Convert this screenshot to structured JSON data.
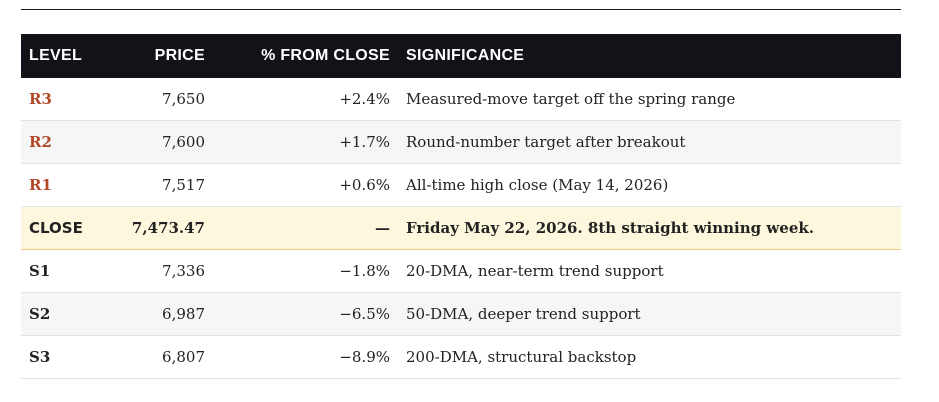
{
  "table": {
    "headers": {
      "level": "LEVEL",
      "price": "PRICE",
      "pct": "% FROM CLOSE",
      "significance": "SIGNIFICANCE"
    },
    "rows": [
      {
        "level": "R3",
        "price": "7,650",
        "pct": "+2.4%",
        "significance": "Measured-move target off the spring range"
      },
      {
        "level": "R2",
        "price": "7,600",
        "pct": "+1.7%",
        "significance": "Round-number target after breakout"
      },
      {
        "level": "R1",
        "price": "7,517",
        "pct": "+0.6%",
        "significance": "All-time high close (May 14, 2026)"
      },
      {
        "level": "CLOSE",
        "price": "7,473.47",
        "pct": "—",
        "significance": "Friday May 22, 2026. 8th straight winning week."
      },
      {
        "level": "S1",
        "price": "7,336",
        "pct": "−1.8%",
        "significance": "20-DMA, near-term trend support"
      },
      {
        "level": "S2",
        "price": "6,987",
        "pct": "−6.5%",
        "significance": "50-DMA, deeper trend support"
      },
      {
        "level": "S3",
        "price": "6,807",
        "pct": "−8.9%",
        "significance": "200-DMA, structural backstop"
      }
    ]
  },
  "colors": {
    "header_bg": "#111318",
    "resistance_text": "#b24a2a",
    "close_row_bg": "#fdf7de",
    "close_row_border": "#e7cf7a",
    "alt_row_bg": "#f6f6f6"
  }
}
